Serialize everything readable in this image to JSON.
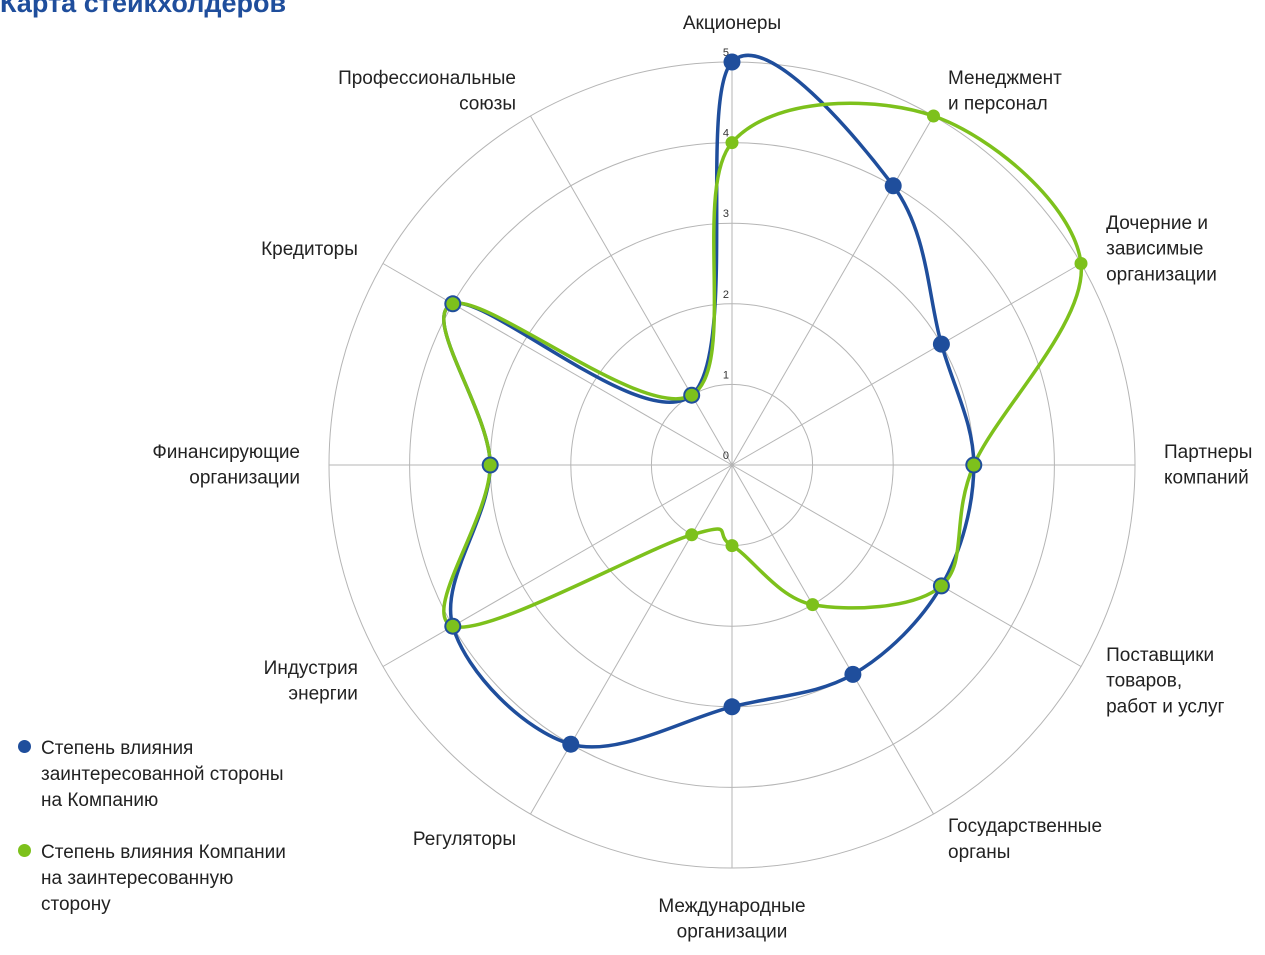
{
  "chart_data": {
    "type": "radar",
    "title": "Карта стейкхолдеров",
    "categories": [
      "Акционеры",
      "Менеджмент\nи персонал",
      "Дочерние и\nзависимые\nорганизации",
      "Партнеры\nкомпаний",
      "Поставщики\nтоваров,\nработ и услуг",
      "Государственные\nорганы",
      "Международные\nорганизации",
      "Регуляторы",
      "Индустрия\nэнергии",
      "Финансирующие\nорганизации",
      "Кредиторы",
      "Профессиональные\nсоюзы"
    ],
    "series": [
      {
        "name": "Степень влияния заинтересованной стороны на Компанию",
        "color": "#1f4e9c",
        "values": [
          5,
          4,
          3,
          3,
          3,
          3,
          3,
          4,
          4,
          3,
          4,
          1
        ]
      },
      {
        "name": "Степень влияния Компании на заинтересованную сторону",
        "color": "#7dc11c",
        "values": [
          4,
          5,
          5,
          3,
          3,
          2,
          1,
          1,
          4,
          3,
          4,
          1
        ]
      }
    ],
    "ylim": [
      0,
      5
    ],
    "yticks": [
      0,
      1,
      2,
      3,
      4,
      5
    ],
    "grid": true
  }
}
